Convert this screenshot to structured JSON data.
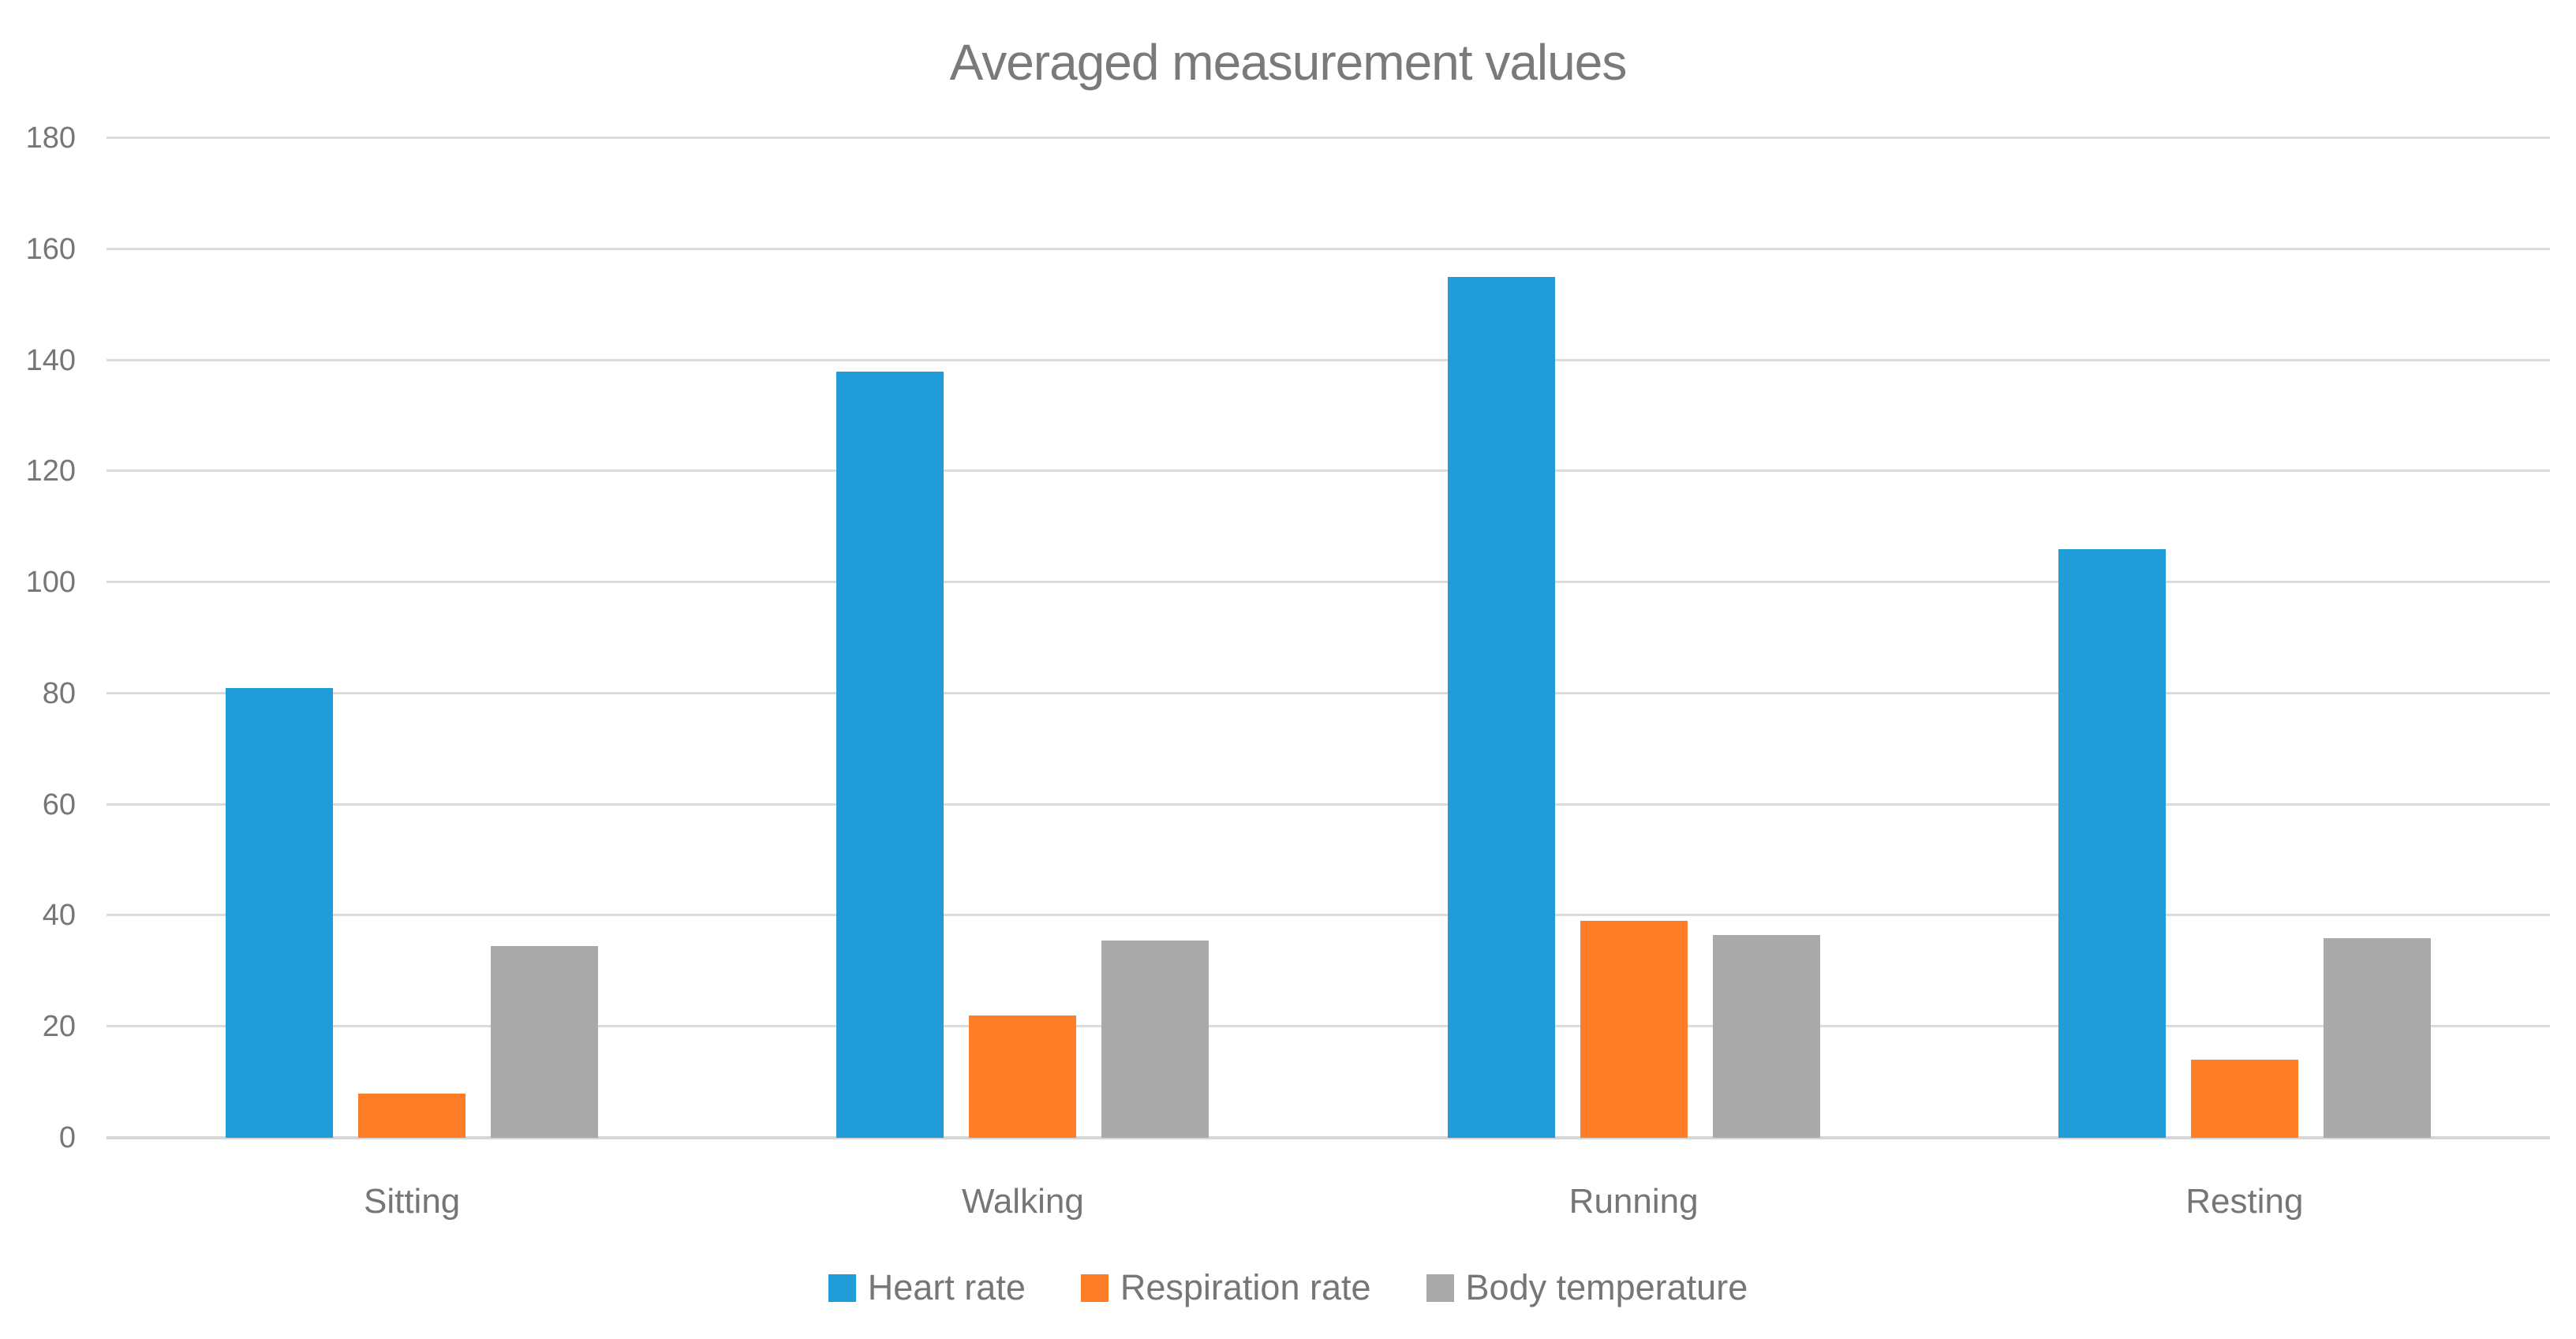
{
  "chart_data": {
    "type": "bar",
    "title": "Averaged measurement values",
    "categories": [
      "Sitting",
      "Walking",
      "Running",
      "Resting"
    ],
    "series": [
      {
        "name": "Heart rate",
        "color": "#209cd8",
        "values": [
          81,
          138,
          155,
          106
        ]
      },
      {
        "name": "Respiration rate",
        "color": "#fd7e27",
        "values": [
          8,
          22,
          39,
          14
        ]
      },
      {
        "name": "Body temperature",
        "color": "#a9a9a9",
        "values": [
          34.5,
          35.5,
          36.5,
          36
        ]
      }
    ],
    "xlabel": "",
    "ylabel": "",
    "ylim": [
      0,
      180
    ],
    "yticks": [
      0,
      20,
      40,
      60,
      80,
      100,
      120,
      140,
      160,
      180
    ],
    "grid": true,
    "legend_position": "bottom-center",
    "colors": {
      "gridline": "#dbdbdb",
      "axis_line": "#d6d6d6",
      "text": "#767676",
      "title_text": "#7a7a7a",
      "background": "#ffffff"
    }
  }
}
